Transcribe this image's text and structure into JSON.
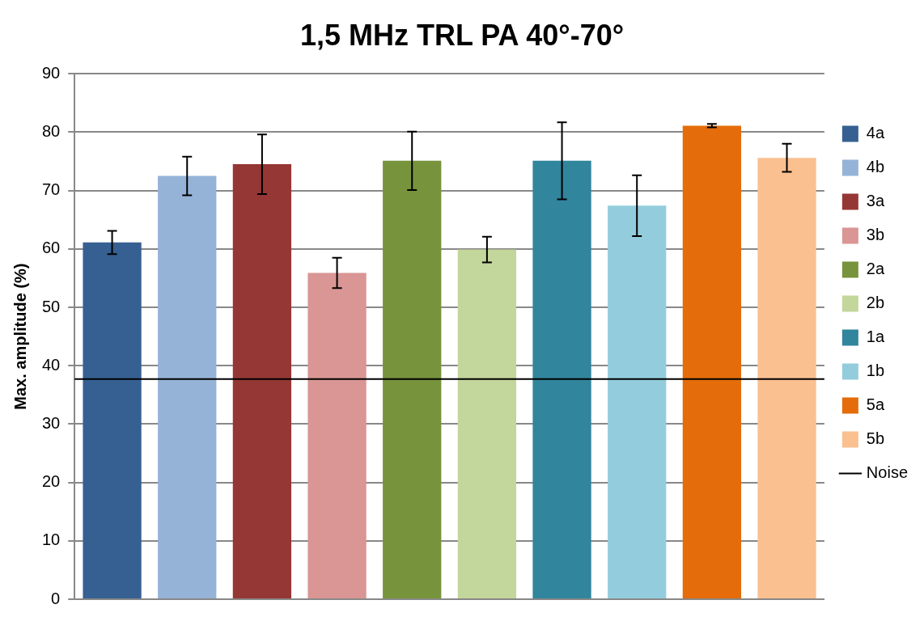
{
  "chart_data": {
    "type": "bar",
    "title": "1,5 MHz TRL PA 40°-70°",
    "ylabel": "Max. amplitude (%)",
    "categories": [
      null
    ],
    "series": [
      {
        "name": "4a",
        "color": "#366092",
        "values": [
          61.1
        ],
        "errors": [
          2
        ]
      },
      {
        "name": "4b",
        "color": "#95b3d7",
        "values": [
          72.5
        ],
        "errors": [
          3.3
        ]
      },
      {
        "name": "3a",
        "color": "#953735",
        "values": [
          74.5
        ],
        "errors": [
          5.1
        ]
      },
      {
        "name": "3b",
        "color": "#d99694",
        "values": [
          55.9
        ],
        "errors": [
          2.6
        ]
      },
      {
        "name": "2a",
        "color": "#77933c",
        "values": [
          75.1
        ],
        "errors": [
          5
        ]
      },
      {
        "name": "2b",
        "color": "#c3d69b",
        "values": [
          59.9
        ],
        "errors": [
          2.2
        ]
      },
      {
        "name": "1a",
        "color": "#31859c",
        "values": [
          75.1
        ],
        "errors": [
          6.6
        ]
      },
      {
        "name": "1b",
        "color": "#93cddd",
        "values": [
          67.4
        ],
        "errors": [
          5.2
        ]
      },
      {
        "name": "5a",
        "color": "#e46c0a",
        "values": [
          81.1
        ],
        "errors": [
          0.3
        ]
      },
      {
        "name": "5b",
        "color": "#fac090",
        "values": [
          75.6
        ],
        "errors": [
          2.4
        ]
      }
    ],
    "ylim": [
      0,
      90
    ],
    "yticks": [
      0,
      10,
      20,
      30,
      40,
      50,
      60,
      70,
      80,
      90
    ],
    "grid": "y",
    "legend": "right",
    "tick_labels": "y",
    "ref_lines": [
      {
        "axis": "y",
        "value": 37.7,
        "label": "Noise",
        "color": "#000000",
        "line_style": "solid"
      }
    ]
  }
}
